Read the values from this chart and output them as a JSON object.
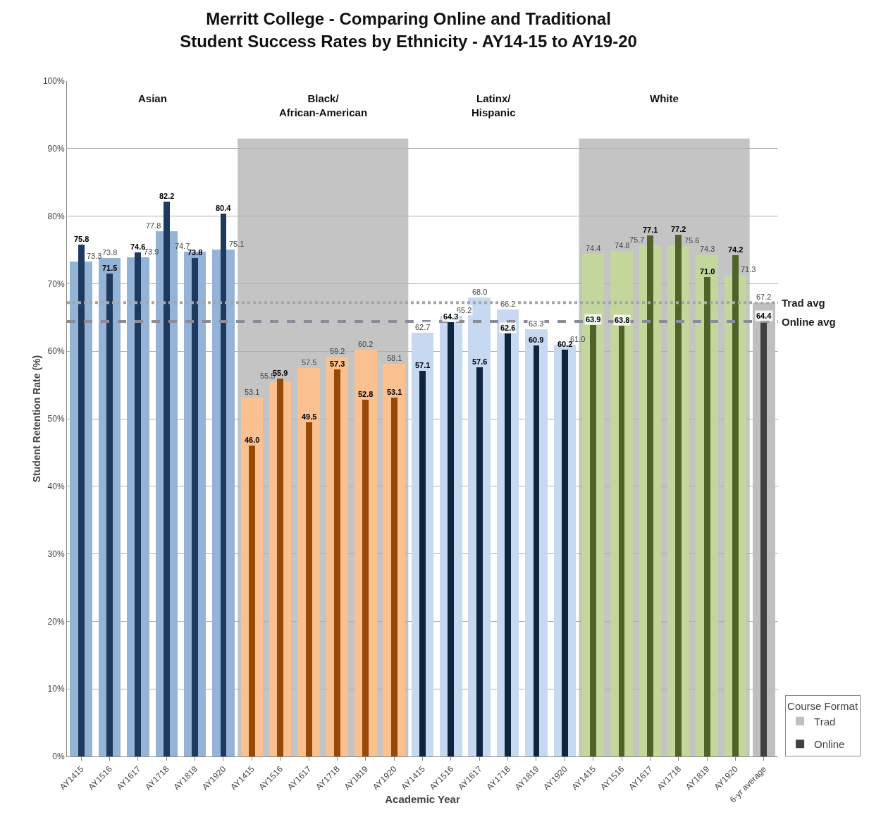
{
  "chart_data": {
    "type": "bar",
    "title": "Merritt College - Comparing Online and Traditional\nStudent Success Rates by Ethnicity - AY14-15 to AY19-20",
    "xlabel": "Academic Year",
    "ylabel": "Student Retention Rate (%)",
    "legend_title": "Course Format",
    "categories": [
      "AY1415",
      "AY1516",
      "AY1617",
      "AY1718",
      "AY1819",
      "AY1920",
      "AY1415",
      "AY1516",
      "AY1617",
      "AY1718",
      "AY1819",
      "AY1920",
      "AY1415",
      "AY1516",
      "AY1617",
      "AY1718",
      "AY1819",
      "AY1920",
      "AY1415",
      "AY1516",
      "AY1617",
      "AY1718",
      "AY1819",
      "AY1920",
      "6-yr average"
    ],
    "series": [
      {
        "name": "Trad",
        "color": "#bfbfbf",
        "colors": [
          "#95b3d7",
          "#95b3d7",
          "#95b3d7",
          "#95b3d7",
          "#95b3d7",
          "#95b3d7",
          "#fac090",
          "#fac090",
          "#fac090",
          "#fac090",
          "#fac090",
          "#fac090",
          "#c6d9f1",
          "#c6d9f1",
          "#c6d9f1",
          "#c6d9f1",
          "#c6d9f1",
          "#c6d9f1",
          "#c3d69b",
          "#c3d69b",
          "#c3d69b",
          "#c3d69b",
          "#c3d69b",
          "#c3d69b",
          "#bfbfbf"
        ],
        "values": [
          73.3,
          73.8,
          73.9,
          77.8,
          74.7,
          75.1,
          53.1,
          55.5,
          57.5,
          59.2,
          60.2,
          58.1,
          62.7,
          65.2,
          68.0,
          66.2,
          63.3,
          61.0,
          74.4,
          74.8,
          75.7,
          75.6,
          74.3,
          71.3,
          67.2
        ],
        "value_labels": [
          "73.3",
          "73.8",
          "73.9",
          "77.8",
          "74.7",
          "75.1",
          "53.1",
          "55.5",
          "57.5",
          "59.2",
          "60.2",
          "58.1",
          "62.7",
          "65.2",
          "68.0",
          "66.2",
          "63.3",
          "61.0",
          "74.4",
          "74.8",
          "75.7",
          "75.6",
          "74.3",
          "71.3",
          "67.2"
        ]
      },
      {
        "name": "Online",
        "color": "#404040",
        "colors": [
          "#1f3a5f",
          "#1f3a5f",
          "#1f3a5f",
          "#1f3a5f",
          "#1f3a5f",
          "#1f3a5f",
          "#984807",
          "#984807",
          "#984807",
          "#984807",
          "#984807",
          "#984807",
          "#0f243e",
          "#0f243e",
          "#0f243e",
          "#0f243e",
          "#0f243e",
          "#0f243e",
          "#4f6228",
          "#4f6228",
          "#4f6228",
          "#4f6228",
          "#4f6228",
          "#4f6228",
          "#404040"
        ],
        "values": [
          75.8,
          71.5,
          74.6,
          82.2,
          73.8,
          80.4,
          46.0,
          55.9,
          49.5,
          57.3,
          52.8,
          53.1,
          57.1,
          64.3,
          57.6,
          62.6,
          60.9,
          60.2,
          63.9,
          63.8,
          77.1,
          77.2,
          71.0,
          74.2,
          64.4
        ],
        "value_labels": [
          "75.8",
          "71.5",
          "74.6",
          "82.2",
          "73.8",
          "80.4",
          "46.0",
          "55.9",
          "49.5",
          "57.3",
          "52.8",
          "53.1",
          "57.1",
          "64.3",
          "57.6",
          "62.6",
          "60.9",
          "60.2",
          "63.9",
          "63.8",
          "77.1",
          "77.2",
          "71.0",
          "74.2",
          "64.4"
        ]
      }
    ],
    "annotations": [
      "Asian",
      "Black/\nAfrican-American",
      "Latinx/\nHispanic",
      "White"
    ],
    "ref_lines": [
      {
        "axis": "y",
        "value": 67.2,
        "label": "Trad avg",
        "color": "#a6a6a6",
        "line_style": "dotted"
      },
      {
        "axis": "y",
        "value": 64.4,
        "label": "Online avg",
        "color": "#8c8c99",
        "line_style": "dashed"
      }
    ],
    "ylim": [
      0,
      100
    ],
    "yticks": [
      {
        "value": 0,
        "label": "0%"
      },
      {
        "value": 10,
        "label": "10%"
      },
      {
        "value": 20,
        "label": "20%"
      },
      {
        "value": 30,
        "label": "30%"
      },
      {
        "value": 40,
        "label": "40%"
      },
      {
        "value": 50,
        "label": "50%"
      },
      {
        "value": 60,
        "label": "60%"
      },
      {
        "value": 70,
        "label": "70%"
      },
      {
        "value": 80,
        "label": "80%"
      },
      {
        "value": 90,
        "label": "90%"
      },
      {
        "value": 100,
        "label": "100%"
      }
    ],
    "grid": "y",
    "legend": "bottom right"
  }
}
